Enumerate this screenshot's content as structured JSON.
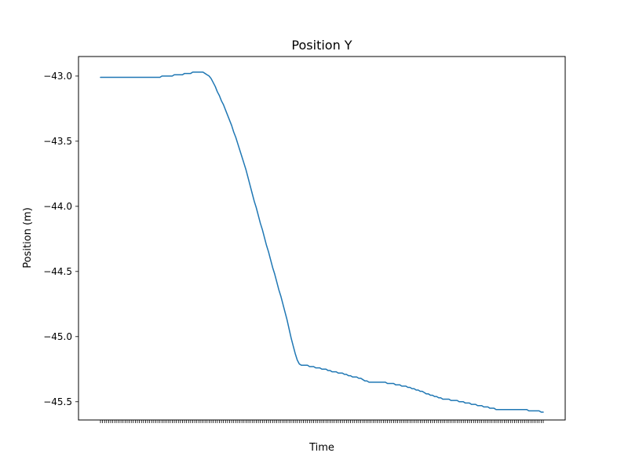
{
  "chart_data": {
    "type": "line",
    "title": "Position Y",
    "xlabel": "Time",
    "ylabel": "Position (m)",
    "ylim": [
      -45.64,
      -42.85
    ],
    "yticks": [
      -43.0,
      -43.5,
      -44.0,
      -44.5,
      -45.0,
      -45.5
    ],
    "ytick_labels": [
      "−43.0",
      "−43.5",
      "−44.0",
      "−44.5",
      "−45.0",
      "−45.5"
    ],
    "grid": false,
    "line_color": "#1f77b4",
    "series": [
      {
        "values": [
          -43.01,
          -43.01,
          -43.01,
          -43.01,
          -43.01,
          -43.01,
          -43.01,
          -43.01,
          -43.01,
          -43.01,
          -43.01,
          -43.01,
          -43.01,
          -43.01,
          -43.01,
          -43.01,
          -43.01,
          -43.01,
          -43.01,
          -43.01,
          -43.01,
          -43.01,
          -43.01,
          -43.01,
          -43.01,
          -43.01,
          -43.01,
          -43.01,
          -43.01,
          -43.01,
          -43.0,
          -43.0,
          -43.0,
          -43.0,
          -43.0,
          -43.0,
          -42.99,
          -42.99,
          -42.99,
          -42.99,
          -42.99,
          -42.98,
          -42.98,
          -42.98,
          -42.98,
          -42.97,
          -42.97,
          -42.97,
          -42.97,
          -42.97,
          -42.97,
          -42.98,
          -42.99,
          -43.0,
          -43.02,
          -43.05,
          -43.08,
          -43.12,
          -43.15,
          -43.19,
          -43.22,
          -43.26,
          -43.3,
          -43.34,
          -43.38,
          -43.43,
          -43.47,
          -43.52,
          -43.57,
          -43.62,
          -43.67,
          -43.72,
          -43.78,
          -43.84,
          -43.9,
          -43.96,
          -44.01,
          -44.07,
          -44.13,
          -44.18,
          -44.24,
          -44.3,
          -44.35,
          -44.41,
          -44.47,
          -44.52,
          -44.58,
          -44.64,
          -44.69,
          -44.75,
          -44.81,
          -44.87,
          -44.94,
          -45.01,
          -45.07,
          -45.13,
          -45.18,
          -45.21,
          -45.22,
          -45.22,
          -45.22,
          -45.22,
          -45.23,
          -45.23,
          -45.23,
          -45.24,
          -45.24,
          -45.24,
          -45.25,
          -45.25,
          -45.25,
          -45.26,
          -45.26,
          -45.27,
          -45.27,
          -45.27,
          -45.28,
          -45.28,
          -45.28,
          -45.29,
          -45.29,
          -45.3,
          -45.3,
          -45.31,
          -45.31,
          -45.31,
          -45.32,
          -45.32,
          -45.33,
          -45.34,
          -45.34,
          -45.35,
          -45.35,
          -45.35,
          -45.35,
          -45.35,
          -45.35,
          -45.35,
          -45.35,
          -45.35,
          -45.36,
          -45.36,
          -45.36,
          -45.36,
          -45.37,
          -45.37,
          -45.37,
          -45.38,
          -45.38,
          -45.38,
          -45.39,
          -45.39,
          -45.4,
          -45.4,
          -45.41,
          -45.41,
          -45.42,
          -45.42,
          -45.43,
          -45.44,
          -45.44,
          -45.45,
          -45.45,
          -45.46,
          -45.46,
          -45.47,
          -45.47,
          -45.48,
          -45.48,
          -45.48,
          -45.48,
          -45.49,
          -45.49,
          -45.49,
          -45.49,
          -45.5,
          -45.5,
          -45.5,
          -45.51,
          -45.51,
          -45.51,
          -45.52,
          -45.52,
          -45.52,
          -45.53,
          -45.53,
          -45.53,
          -45.54,
          -45.54,
          -45.54,
          -45.55,
          -45.55,
          -45.55,
          -45.56,
          -45.56,
          -45.56,
          -45.56,
          -45.56,
          -45.56,
          -45.56,
          -45.56,
          -45.56,
          -45.56,
          -45.56,
          -45.56,
          -45.56,
          -45.56,
          -45.56,
          -45.56,
          -45.57,
          -45.57,
          -45.57,
          -45.57,
          -45.57,
          -45.57,
          -45.58,
          -45.58
        ]
      }
    ]
  }
}
